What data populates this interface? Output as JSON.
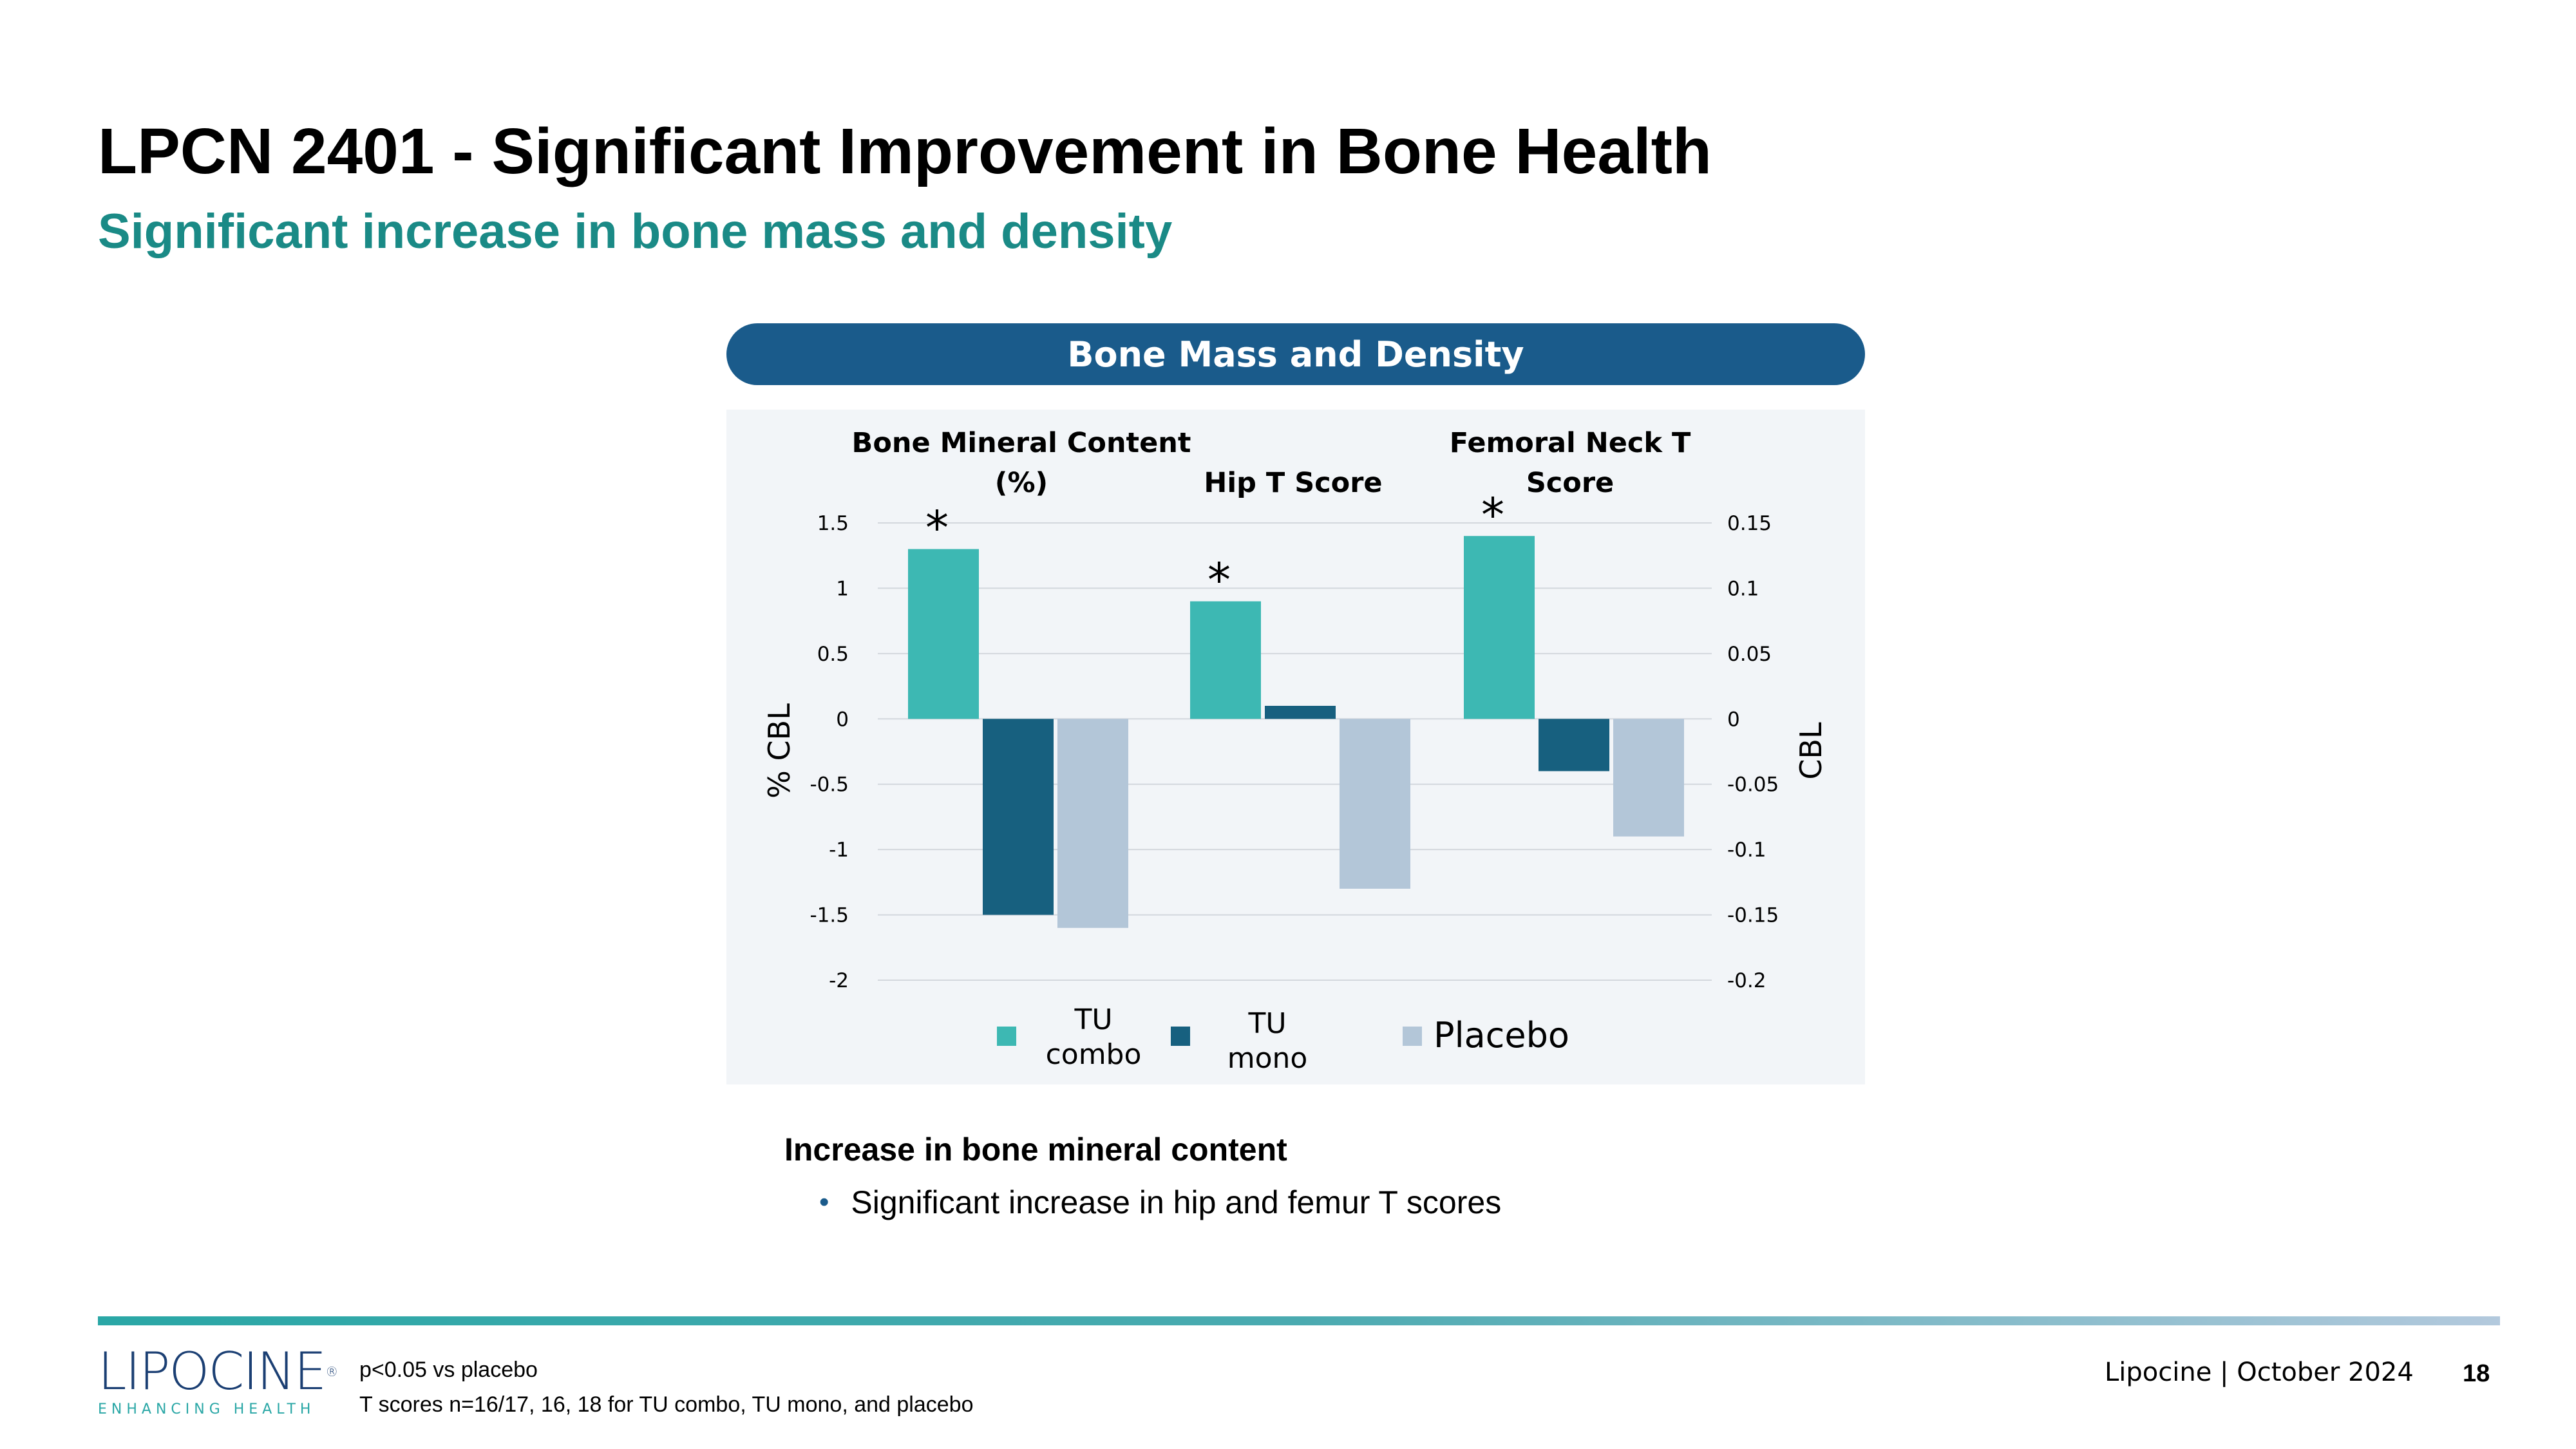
{
  "slide": {
    "title": "LPCN 2401 - Significant Improvement in Bone Health",
    "subtitle": "Significant increase in bone mass and density",
    "banner": "Bone Mass and Density"
  },
  "takeaways": {
    "heading": "Increase in bone mineral content",
    "bullet": "Significant increase in hip and femur T scores"
  },
  "footer": {
    "logo_text": "LIPOCINE",
    "logo_tagline": "ENHANCING HEALTH",
    "footnote_1": "p<0.05 vs placebo",
    "footnote_2": "T scores n=16/17, 16, 18  for TU combo, TU mono, and placebo",
    "source": "Lipocine | October 2024",
    "page_number": "18"
  },
  "colors": {
    "accent_teal": "#1a8a86",
    "banner_blue": "#1a5b8b",
    "tu_combo": "#3db8b3",
    "tu_mono": "#17607f",
    "placebo": "#b3c6d8"
  },
  "chart_data": {
    "type": "bar",
    "title": "Bone Mass and Density",
    "groups": [
      {
        "title_lines": [
          "Bone Mineral Content",
          "(%)"
        ],
        "axis": "left",
        "values": [
          1.3,
          -1.5,
          -1.6
        ],
        "significant": [
          true,
          false,
          false
        ]
      },
      {
        "title_lines": [
          "Hip T Score"
        ],
        "axis": "right",
        "values": [
          0.09,
          0.01,
          -0.13
        ],
        "significant": [
          true,
          false,
          false
        ]
      },
      {
        "title_lines": [
          "Femoral Neck T",
          "Score"
        ],
        "axis": "right",
        "values": [
          0.14,
          -0.04,
          -0.09
        ],
        "significant": [
          true,
          false,
          false
        ]
      }
    ],
    "series": [
      {
        "name": "TU combo",
        "legend_lines": [
          "TU",
          "combo"
        ],
        "color": "#3db8b3"
      },
      {
        "name": "TU mono",
        "legend_lines": [
          "TU",
          "mono"
        ],
        "color": "#17607f"
      },
      {
        "name": "Placebo",
        "legend_lines": [
          "Placebo"
        ],
        "color": "#b3c6d8"
      }
    ],
    "significance_marker": "*",
    "y_left": {
      "label": "% CBL",
      "ylim": [
        -2,
        1.5
      ],
      "ticks": [
        "1.5",
        "1",
        "0.5",
        "0",
        "-0.5",
        "-1",
        "-1.5",
        "-2"
      ]
    },
    "y_right": {
      "label": "CBL",
      "ylim": [
        -0.2,
        0.15
      ],
      "ticks": [
        "0.15",
        "0.1",
        "0.05",
        "0",
        "-0.05",
        "-0.1",
        "-0.15",
        "-0.2"
      ]
    },
    "grid": true,
    "legend_position": "bottom"
  }
}
